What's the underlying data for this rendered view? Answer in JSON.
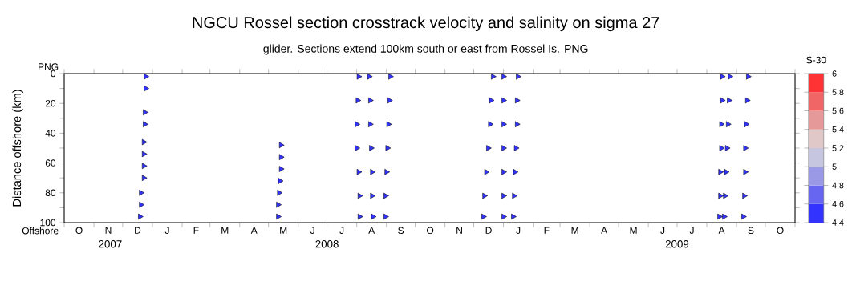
{
  "chart_data": {
    "type": "scatter",
    "title": "NGCU Rossel section crosstrack velocity and salinity on sigma 27",
    "subtitle": "glider. Sections extend 100km south or east from Rossel Is. PNG",
    "ylabel": "Distance offshore (km)",
    "clabel": "S-30",
    "marker": "triangle",
    "xlim": [
      "2007-10-01",
      "2009-11-01"
    ],
    "ylim": [
      100,
      0
    ],
    "yticks": [
      0,
      20,
      40,
      60,
      80,
      100,
      {
        "value": 10,
        "label": null
      },
      {
        "value": 30,
        "label": null
      },
      {
        "value": 50,
        "label": null
      },
      {
        "value": 70,
        "label": null
      },
      {
        "value": 90,
        "label": null
      }
    ],
    "xticks": [
      {
        "value": "2007-10-01",
        "label": null
      },
      {
        "value": "2007-11-01",
        "label": null
      },
      {
        "value": "2007-12-01",
        "label": null
      },
      {
        "value": "2008-01-01",
        "label": null
      },
      {
        "value": "2008-02-01",
        "label": null
      },
      {
        "value": "2008-03-01",
        "label": null
      },
      {
        "value": "2008-04-01",
        "label": null
      },
      {
        "value": "2008-05-01",
        "label": null
      },
      {
        "value": "2008-06-01",
        "label": null
      },
      {
        "value": "2008-07-01",
        "label": null
      },
      {
        "value": "2008-08-01",
        "label": null
      },
      {
        "value": "2008-09-01",
        "label": null
      },
      {
        "value": "2008-10-01",
        "label": null
      },
      {
        "value": "2008-11-01",
        "label": null
      },
      {
        "value": "2008-12-01",
        "label": null
      },
      {
        "value": "2009-01-01",
        "label": null
      },
      {
        "value": "2009-02-01",
        "label": null
      },
      {
        "value": "2009-03-01",
        "label": null
      },
      {
        "value": "2009-04-01",
        "label": null
      },
      {
        "value": "2009-05-01",
        "label": null
      },
      {
        "value": "2009-06-01",
        "label": null
      },
      {
        "value": "2009-07-01",
        "label": null
      },
      {
        "value": "2009-08-01",
        "label": null
      },
      {
        "value": "2009-09-01",
        "label": null
      },
      {
        "value": "2009-10-01",
        "label": null
      },
      {
        "value": "2009-11-01",
        "label": null
      },
      {
        "value": "2007-11-18",
        "label": "2007"
      },
      {
        "value": "2008-07-01",
        "label": "2008"
      },
      {
        "value": "2009-07-01",
        "label": "2009"
      }
    ],
    "clim": [
      4.4,
      6
    ],
    "cticks": [
      4.4,
      4.6,
      4.8,
      5,
      5.2,
      5.4,
      5.6,
      5.8,
      6
    ],
    "annotations": [
      "PNG",
      "Offshore",
      "O",
      "N",
      "D",
      "J",
      "F",
      "M",
      "A",
      "M",
      "J",
      "J",
      "A",
      "S",
      "O",
      "N",
      "D",
      "J",
      "F",
      "M",
      "A",
      "M",
      "J",
      "J",
      "A",
      "S",
      "O"
    ],
    "series": [
      {
        "color": "#3333ff",
        "x": [
          "2007-12-25",
          "2007-12-25",
          "2007-12-24",
          "2007-12-24",
          "2007-12-23",
          "2007-12-23",
          "2007-12-23",
          "2007-12-23",
          "2007-12-20",
          "2007-12-20",
          "2007-12-19"
        ],
        "values": [
          2,
          10,
          26,
          34,
          46,
          54,
          62,
          70,
          80,
          88,
          96
        ]
      },
      {
        "color": "#3333ff",
        "x": [
          "2008-05-14",
          "2008-05-14",
          "2008-05-14",
          "2008-05-13",
          "2008-05-12",
          "2008-05-11",
          "2008-05-11"
        ],
        "values": [
          48,
          56,
          64,
          72,
          80,
          88,
          96
        ]
      },
      {
        "color": "#3333ff",
        "x": [
          "2008-08-03",
          "2008-08-02",
          "2008-08-01",
          "2008-08-01",
          "2008-08-03",
          "2008-08-04",
          "2008-08-04"
        ],
        "values": [
          2,
          18,
          34,
          50,
          66,
          82,
          96
        ]
      },
      {
        "color": "#3333ff",
        "x": [
          "2008-08-14",
          "2008-08-15",
          "2008-08-15",
          "2008-08-16",
          "2008-08-17",
          "2008-08-17",
          "2008-08-18"
        ],
        "values": [
          2,
          18,
          34,
          50,
          66,
          82,
          96
        ]
      },
      {
        "color": "#3333ff",
        "x": [
          "2008-09-05",
          "2008-09-04",
          "2008-09-03",
          "2008-09-02",
          "2008-09-01",
          "2008-08-31",
          "2008-08-31"
        ],
        "values": [
          2,
          18,
          34,
          50,
          66,
          82,
          96
        ]
      },
      {
        "color": "#3333ff",
        "x": [
          "2008-12-21",
          "2008-12-19",
          "2008-12-18",
          "2008-12-16",
          "2008-12-14",
          "2008-12-12",
          "2008-12-11"
        ],
        "values": [
          2,
          18,
          34,
          50,
          66,
          82,
          96
        ]
      },
      {
        "color": "#3333ff",
        "x": [
          "2009-01-01",
          "2009-01-01",
          "2009-01-01",
          "2009-01-01",
          "2009-01-01",
          "2009-01-01",
          "2009-01-01"
        ],
        "values": [
          2,
          18,
          34,
          50,
          66,
          82,
          96
        ]
      },
      {
        "color": "#3333ff",
        "x": [
          "2009-01-16",
          "2009-01-15",
          "2009-01-15",
          "2009-01-14",
          "2009-01-13",
          "2009-01-12",
          "2009-01-11"
        ],
        "values": [
          2,
          18,
          34,
          50,
          66,
          82,
          96
        ]
      },
      {
        "color": "#3333ff",
        "x": [
          "2009-08-17",
          "2009-08-17",
          "2009-08-16",
          "2009-08-16",
          "2009-08-15",
          "2009-08-15",
          "2009-08-14"
        ],
        "values": [
          2,
          18,
          34,
          50,
          66,
          82,
          96
        ]
      },
      {
        "color": "#3333ff",
        "x": [
          "2009-08-25",
          "2009-08-24",
          "2009-08-23",
          "2009-08-22",
          "2009-08-21",
          "2009-08-20",
          "2009-08-19"
        ],
        "values": [
          2,
          18,
          34,
          50,
          66,
          82,
          96
        ]
      },
      {
        "color": "#3333ff",
        "x": [
          "2009-09-13",
          "2009-09-12",
          "2009-09-11",
          "2009-09-10",
          "2009-09-10",
          "2009-09-09",
          "2009-09-08"
        ],
        "values": [
          2,
          18,
          34,
          50,
          66,
          82,
          96
        ]
      }
    ]
  }
}
